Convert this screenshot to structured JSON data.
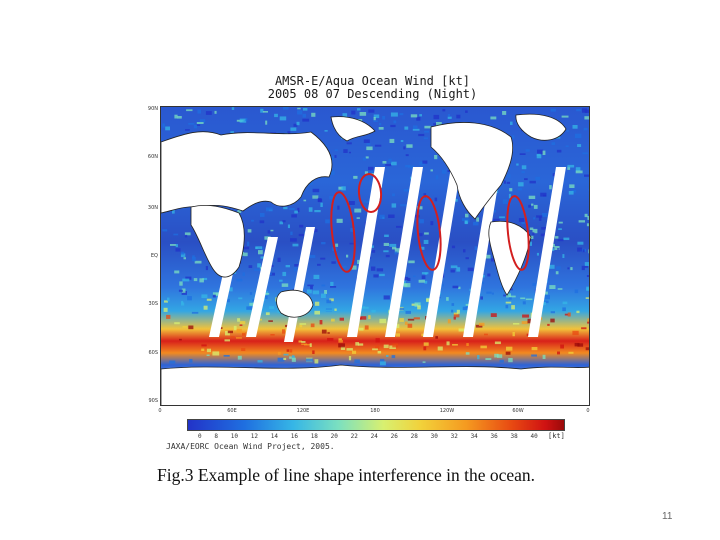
{
  "map": {
    "title_line1": "AMSR-E/Aqua Ocean Wind [kt]",
    "title_line2": "2005 08 07 Descending (Night)",
    "lat_labels": [
      "90N",
      "60N",
      "30N",
      "EQ",
      "30S",
      "60S",
      "90S"
    ],
    "lon_labels": [
      "0",
      "60E",
      "120E",
      "180",
      "120W",
      "60W",
      "0"
    ],
    "colorbar": {
      "ticks": [
        "0",
        "8",
        "10",
        "12",
        "14",
        "16",
        "18",
        "20",
        "22",
        "24",
        "26",
        "28",
        "30",
        "32",
        "34",
        "36",
        "38",
        "40"
      ],
      "unit": "[kt]",
      "colors": [
        "#2233c8",
        "#1f6fe0",
        "#36b6e6",
        "#7be0c0",
        "#d8f070",
        "#f2d13a",
        "#f59a20",
        "#e84a12",
        "#d01212",
        "#9a0a0a"
      ]
    },
    "credit": "JAXA/EORC Ocean Wind Project, 2005.",
    "highlight_color": "#d31f1f",
    "highlighted_regions": 4
  },
  "caption": "Fig.3 Example of line shape interference in the ocean.",
  "slide_number": "11"
}
